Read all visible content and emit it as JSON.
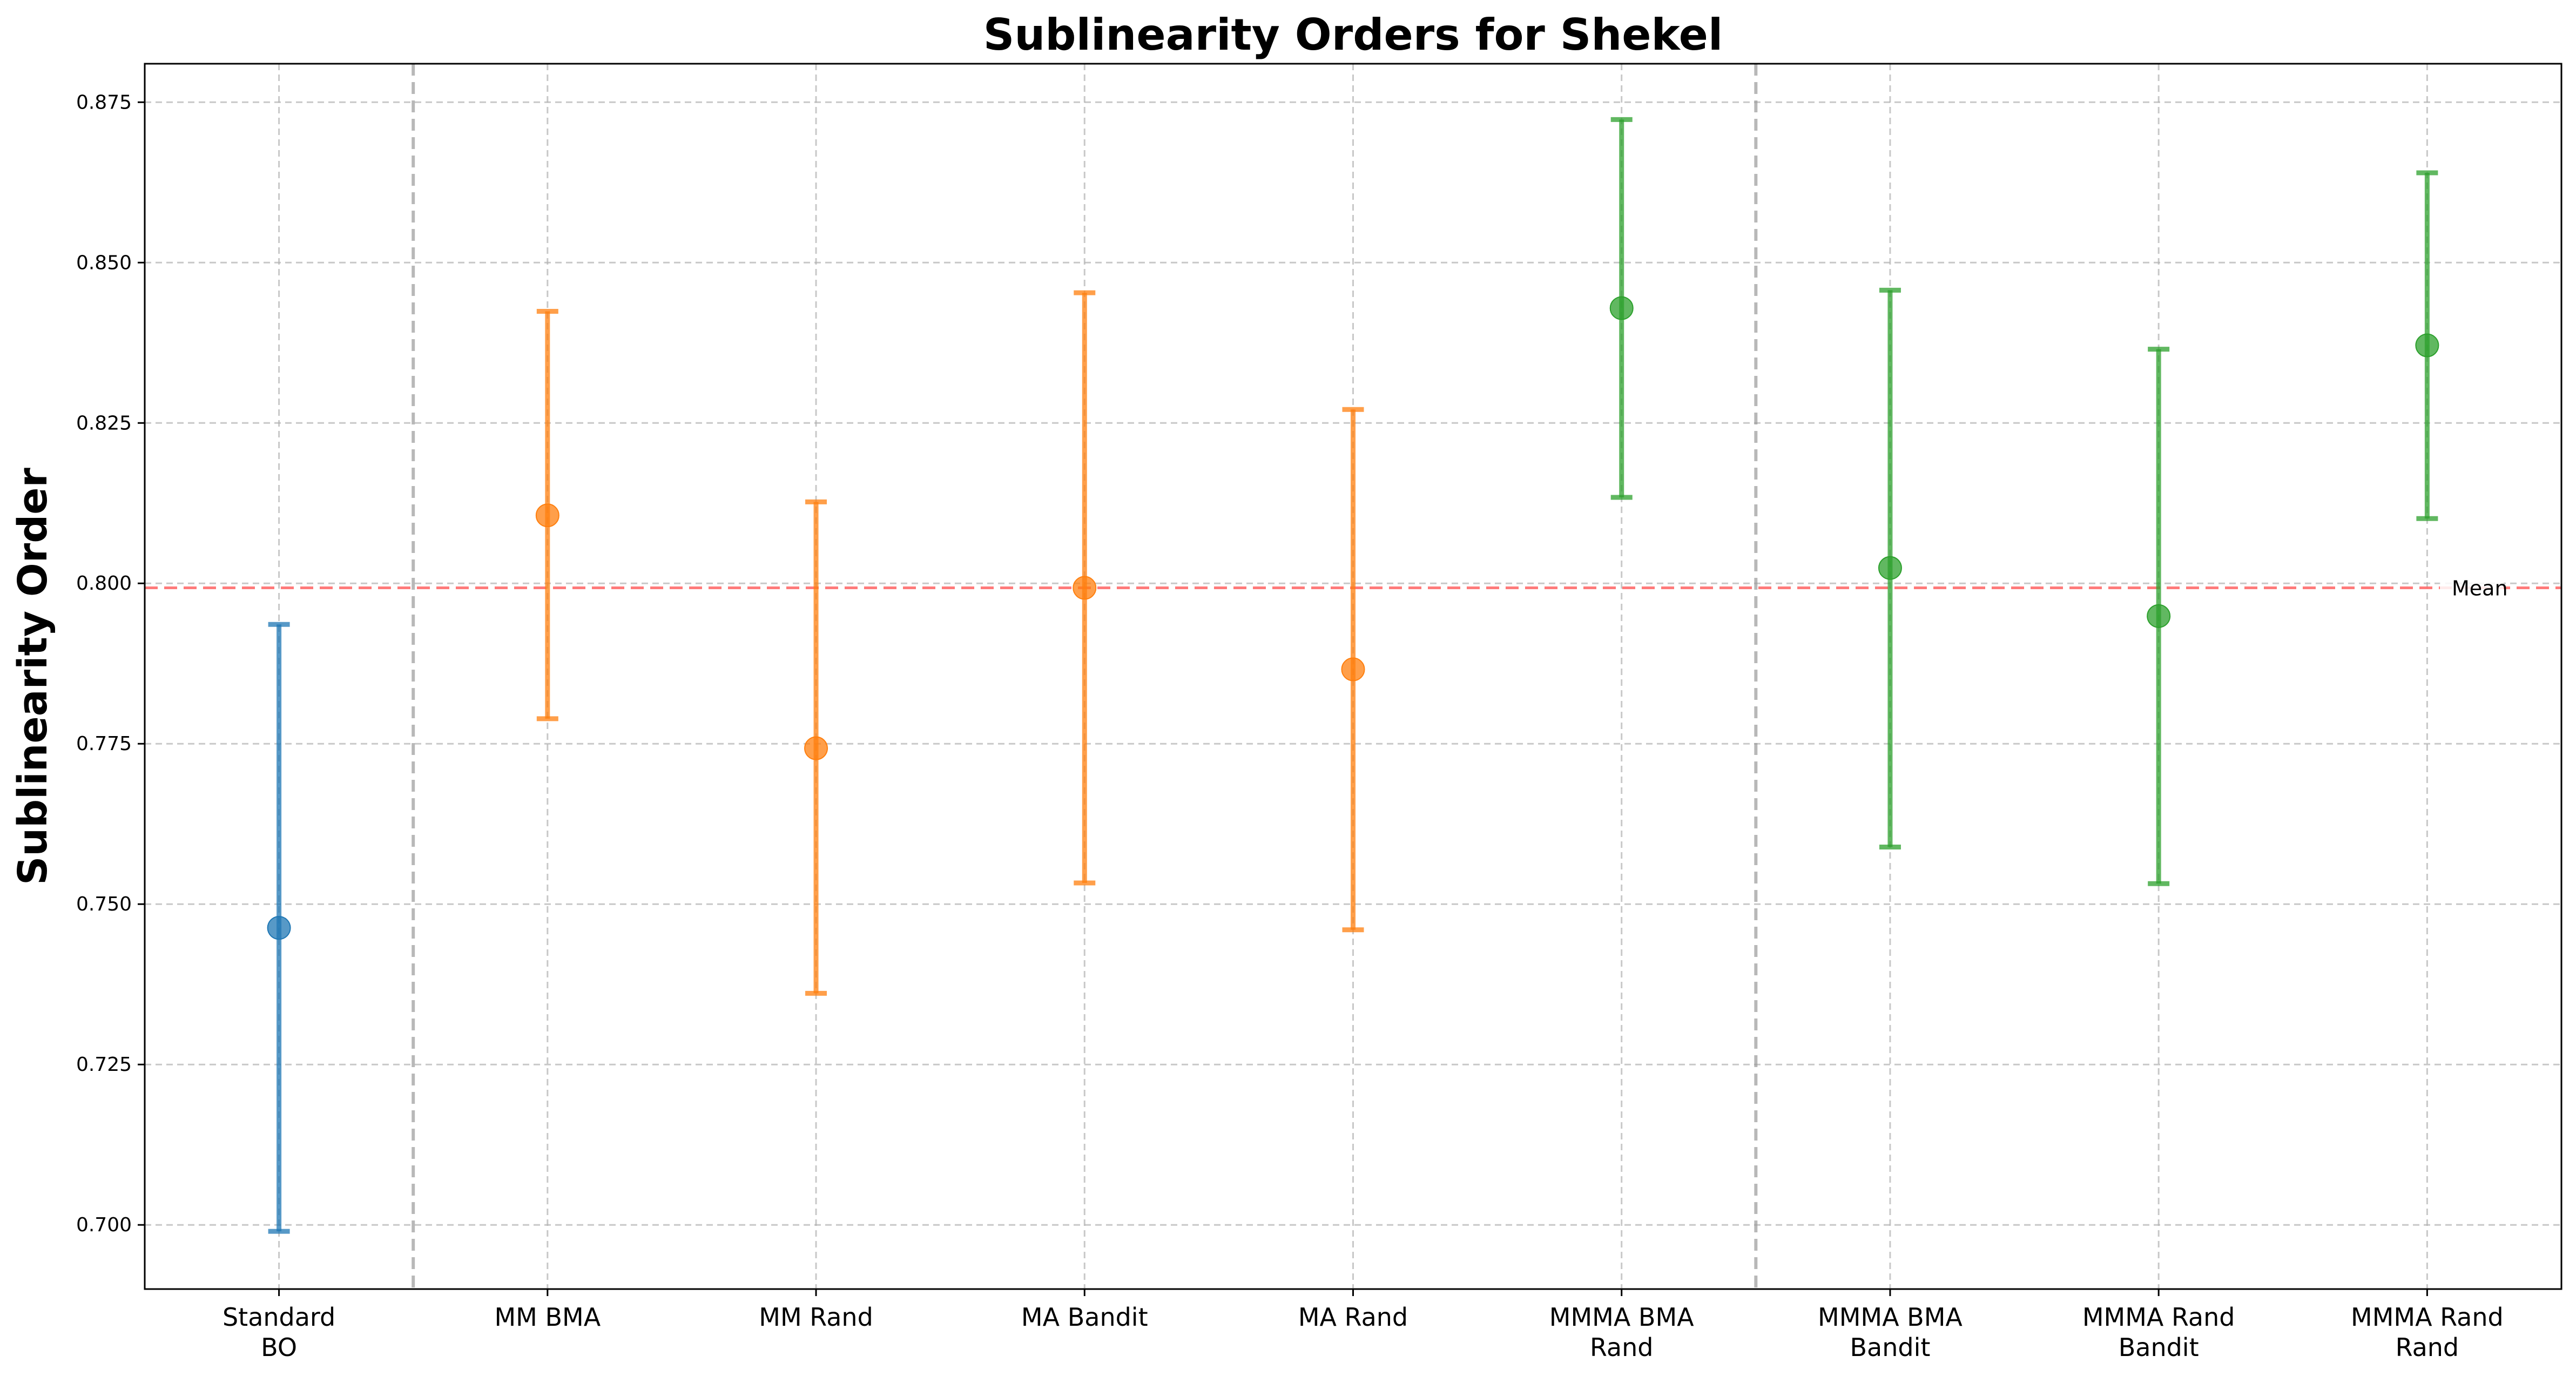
{
  "chart_data": {
    "type": "scatter",
    "title": "Sublinearity Orders for Shekel",
    "xlabel": "",
    "ylabel": "Sublinearity Order",
    "ylim": [
      0.69,
      0.881
    ],
    "yticks": [
      "0.700",
      "0.725",
      "0.750",
      "0.775",
      "0.800",
      "0.825",
      "0.850",
      "0.875"
    ],
    "grid": true,
    "categories": [
      [
        "Standard",
        "BO"
      ],
      [
        "MM BMA"
      ],
      [
        "MM Rand"
      ],
      [
        "MA Bandit"
      ],
      [
        "MA Rand"
      ],
      [
        "MMMA BMA",
        "Rand"
      ],
      [
        "MMMA BMA",
        "Bandit"
      ],
      [
        "MMMA Rand",
        "Bandit"
      ],
      [
        "MMMA Rand",
        "Rand"
      ]
    ],
    "points": [
      {
        "y": 0.7463,
        "lower": 0.699,
        "upper": 0.7936,
        "group": 0
      },
      {
        "y": 0.8106,
        "lower": 0.7789,
        "upper": 0.8424,
        "group": 1
      },
      {
        "y": 0.7743,
        "lower": 0.7361,
        "upper": 0.8127,
        "group": 1
      },
      {
        "y": 0.7993,
        "lower": 0.7533,
        "upper": 0.8453,
        "group": 1
      },
      {
        "y": 0.7866,
        "lower": 0.746,
        "upper": 0.8271,
        "group": 1
      },
      {
        "y": 0.8429,
        "lower": 0.8134,
        "upper": 0.8723,
        "group": 2
      },
      {
        "y": 0.8024,
        "lower": 0.7589,
        "upper": 0.8457,
        "group": 2
      },
      {
        "y": 0.7949,
        "lower": 0.7532,
        "upper": 0.8365,
        "group": 2
      },
      {
        "y": 0.8371,
        "lower": 0.8101,
        "upper": 0.864,
        "group": 2
      }
    ],
    "group_colors": [
      "#1f77b4",
      "#ff7f0e",
      "#2ca02c"
    ],
    "separators_after": [
      0,
      5
    ],
    "mean": {
      "value": 0.7993,
      "label": "Mean",
      "color": "#ff6b6b"
    }
  }
}
